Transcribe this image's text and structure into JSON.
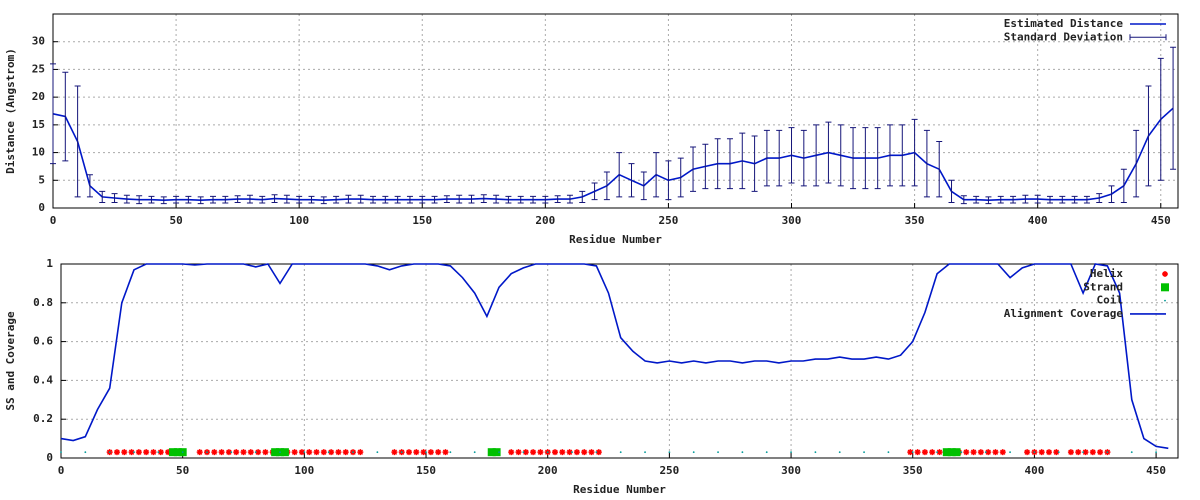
{
  "chart_data": [
    {
      "type": "line",
      "xlabel": "Residue Number",
      "ylabel": "Distance (Angstrom)",
      "xlim": [
        0,
        457
      ],
      "xticks": [
        0,
        50,
        100,
        150,
        200,
        250,
        300,
        350,
        400,
        450
      ],
      "ylim": [
        0,
        35
      ],
      "yticks": [
        0,
        5,
        10,
        15,
        20,
        25,
        30
      ],
      "grid": true,
      "legend": "upper right",
      "x": [
        0,
        5,
        10,
        15,
        20,
        25,
        30,
        35,
        40,
        45,
        50,
        55,
        60,
        65,
        70,
        75,
        80,
        85,
        90,
        95,
        100,
        105,
        110,
        115,
        120,
        125,
        130,
        135,
        140,
        145,
        150,
        155,
        160,
        165,
        170,
        175,
        180,
        185,
        190,
        195,
        200,
        205,
        210,
        215,
        220,
        225,
        230,
        235,
        240,
        245,
        250,
        255,
        260,
        265,
        270,
        275,
        280,
        285,
        290,
        295,
        300,
        305,
        310,
        315,
        320,
        325,
        330,
        335,
        340,
        345,
        350,
        355,
        360,
        365,
        370,
        375,
        380,
        385,
        390,
        395,
        400,
        405,
        410,
        415,
        420,
        425,
        430,
        435,
        440,
        445,
        450,
        455
      ],
      "series": [
        {
          "name": "Estimated Distance",
          "color": "#0018c8",
          "style": "line",
          "values": [
            17,
            16.5,
            12,
            4,
            2,
            1.8,
            1.6,
            1.5,
            1.5,
            1.4,
            1.5,
            1.5,
            1.4,
            1.5,
            1.5,
            1.6,
            1.6,
            1.5,
            1.7,
            1.6,
            1.5,
            1.5,
            1.4,
            1.5,
            1.6,
            1.6,
            1.5,
            1.5,
            1.5,
            1.5,
            1.5,
            1.5,
            1.6,
            1.6,
            1.6,
            1.7,
            1.6,
            1.5,
            1.5,
            1.5,
            1.5,
            1.6,
            1.6,
            2,
            3,
            4,
            6,
            5,
            4,
            6,
            5,
            5.5,
            7,
            7.5,
            8,
            8,
            8.5,
            8,
            9,
            9,
            9.5,
            9,
            9.5,
            10,
            9.5,
            9,
            9,
            9,
            9.5,
            9.5,
            10,
            8,
            7,
            3,
            1.5,
            1.5,
            1.4,
            1.5,
            1.5,
            1.6,
            1.6,
            1.5,
            1.5,
            1.5,
            1.5,
            1.8,
            2.5,
            4,
            8,
            13,
            16,
            18
          ]
        },
        {
          "name": "Standard Deviation",
          "color": "#16167a",
          "style": "errorbar",
          "values": [
            9,
            8,
            10,
            2,
            1,
            0.8,
            0.7,
            0.7,
            0.6,
            0.6,
            0.6,
            0.6,
            0.6,
            0.6,
            0.6,
            0.6,
            0.7,
            0.6,
            0.7,
            0.7,
            0.6,
            0.6,
            0.6,
            0.6,
            0.7,
            0.7,
            0.6,
            0.6,
            0.6,
            0.6,
            0.6,
            0.6,
            0.6,
            0.7,
            0.7,
            0.7,
            0.7,
            0.6,
            0.6,
            0.6,
            0.6,
            0.6,
            0.7,
            1,
            1.5,
            2.5,
            4,
            3,
            2.5,
            4,
            3.5,
            3.5,
            4,
            4,
            4.5,
            4.5,
            5,
            5,
            5,
            5,
            5,
            5,
            5.5,
            5.5,
            5.5,
            5.5,
            5.5,
            5.5,
            5.5,
            5.5,
            6,
            6,
            5,
            2,
            0.7,
            0.6,
            0.6,
            0.6,
            0.6,
            0.7,
            0.7,
            0.6,
            0.6,
            0.6,
            0.6,
            0.8,
            1.5,
            3,
            6,
            9,
            11,
            11
          ]
        }
      ]
    },
    {
      "type": "line",
      "xlabel": "Residue Number",
      "ylabel": "SS and Coverage",
      "xlim": [
        0,
        459
      ],
      "xticks": [
        0,
        50,
        100,
        150,
        200,
        250,
        300,
        350,
        400,
        450
      ],
      "ylim": [
        0,
        1
      ],
      "yticks": [
        0,
        0.2,
        0.4,
        0.6,
        0.8,
        1
      ],
      "grid": true,
      "legend": "upper right",
      "series": [
        {
          "name": "Helix",
          "color": "#ff0000",
          "style": "star",
          "x": [
            20,
            23,
            26,
            29,
            32,
            35,
            38,
            41,
            44,
            57,
            60,
            63,
            66,
            69,
            72,
            75,
            78,
            81,
            84,
            87,
            93,
            96,
            99,
            102,
            105,
            108,
            111,
            114,
            117,
            120,
            123,
            137,
            140,
            143,
            146,
            149,
            152,
            155,
            158,
            185,
            188,
            191,
            194,
            197,
            200,
            203,
            206,
            209,
            212,
            215,
            218,
            221,
            349,
            352,
            355,
            358,
            361,
            369,
            372,
            375,
            378,
            381,
            384,
            387,
            397,
            400,
            403,
            406,
            409,
            415,
            418,
            421,
            424,
            427,
            430
          ],
          "values": [
            0.03,
            0.03,
            0.03,
            0.03,
            0.03,
            0.03,
            0.03,
            0.03,
            0.03,
            0.03,
            0.03,
            0.03,
            0.03,
            0.03,
            0.03,
            0.03,
            0.03,
            0.03,
            0.03,
            0.03,
            0.03,
            0.03,
            0.03,
            0.03,
            0.03,
            0.03,
            0.03,
            0.03,
            0.03,
            0.03,
            0.03,
            0.03,
            0.03,
            0.03,
            0.03,
            0.03,
            0.03,
            0.03,
            0.03,
            0.03,
            0.03,
            0.03,
            0.03,
            0.03,
            0.03,
            0.03,
            0.03,
            0.03,
            0.03,
            0.03,
            0.03,
            0.03,
            0.03,
            0.03,
            0.03,
            0.03,
            0.03,
            0.03,
            0.03,
            0.03,
            0.03,
            0.03,
            0.03,
            0.03,
            0.03,
            0.03,
            0.03,
            0.03,
            0.03,
            0.03,
            0.03,
            0.03,
            0.03,
            0.03,
            0.03
          ]
        },
        {
          "name": "Strand",
          "color": "#00c000",
          "style": "square",
          "x": [
            46,
            48,
            50,
            88,
            90,
            92,
            177,
            179,
            364,
            366,
            368
          ],
          "values": [
            0.03,
            0.03,
            0.03,
            0.03,
            0.03,
            0.03,
            0.03,
            0.03,
            0.03,
            0.03,
            0.03
          ]
        },
        {
          "name": "Coil",
          "color": "#009999",
          "style": "dot",
          "x": [
            0,
            10,
            20,
            30,
            40,
            50,
            60,
            70,
            80,
            90,
            100,
            110,
            120,
            130,
            140,
            150,
            160,
            170,
            180,
            190,
            200,
            210,
            220,
            230,
            240,
            250,
            260,
            270,
            280,
            290,
            300,
            310,
            320,
            330,
            340,
            350,
            360,
            370,
            380,
            390,
            400,
            410,
            420,
            430,
            440,
            450
          ],
          "values": [
            0.03,
            0.03,
            0.03,
            0.03,
            0.03,
            0.03,
            0.03,
            0.03,
            0.03,
            0.03,
            0.03,
            0.03,
            0.03,
            0.03,
            0.03,
            0.03,
            0.03,
            0.03,
            0.03,
            0.03,
            0.03,
            0.03,
            0.03,
            0.03,
            0.03,
            0.03,
            0.03,
            0.03,
            0.03,
            0.03,
            0.03,
            0.03,
            0.03,
            0.03,
            0.03,
            0.03,
            0.03,
            0.03,
            0.03,
            0.03,
            0.03,
            0.03,
            0.03,
            0.03,
            0.03,
            0.03
          ]
        },
        {
          "name": "Alignment Coverage",
          "color": "#0018c8",
          "style": "line",
          "x": [
            0,
            5,
            10,
            15,
            20,
            25,
            30,
            35,
            40,
            45,
            50,
            55,
            60,
            65,
            70,
            75,
            80,
            85,
            90,
            95,
            100,
            105,
            110,
            115,
            120,
            125,
            130,
            135,
            140,
            145,
            150,
            155,
            160,
            165,
            170,
            175,
            180,
            185,
            190,
            195,
            200,
            205,
            210,
            215,
            220,
            225,
            230,
            235,
            240,
            245,
            250,
            255,
            260,
            265,
            270,
            275,
            280,
            285,
            290,
            295,
            300,
            305,
            310,
            315,
            320,
            325,
            330,
            335,
            340,
            345,
            350,
            355,
            360,
            365,
            370,
            375,
            380,
            385,
            390,
            395,
            400,
            405,
            410,
            415,
            420,
            425,
            430,
            435,
            440,
            445,
            450,
            455
          ],
          "values": [
            0.1,
            0.09,
            0.11,
            0.25,
            0.36,
            0.8,
            0.97,
            1,
            1,
            1,
            1,
            0.995,
            1,
            1,
            1,
            1,
            0.985,
            1,
            0.9,
            1,
            1,
            1,
            1,
            1,
            1,
            1,
            0.99,
            0.97,
            0.99,
            1,
            1,
            1,
            0.99,
            0.93,
            0.85,
            0.73,
            0.88,
            0.95,
            0.98,
            1,
            1,
            1,
            1,
            1,
            0.99,
            0.85,
            0.62,
            0.55,
            0.5,
            0.49,
            0.5,
            0.49,
            0.5,
            0.49,
            0.5,
            0.5,
            0.49,
            0.5,
            0.5,
            0.49,
            0.5,
            0.5,
            0.51,
            0.51,
            0.52,
            0.51,
            0.51,
            0.52,
            0.51,
            0.53,
            0.6,
            0.75,
            0.95,
            1,
            1,
            1,
            1,
            1,
            0.93,
            0.98,
            1,
            1,
            1,
            1,
            0.85,
            1,
            0.99,
            0.85,
            0.3,
            0.1,
            0.06,
            0.05
          ]
        }
      ]
    }
  ]
}
